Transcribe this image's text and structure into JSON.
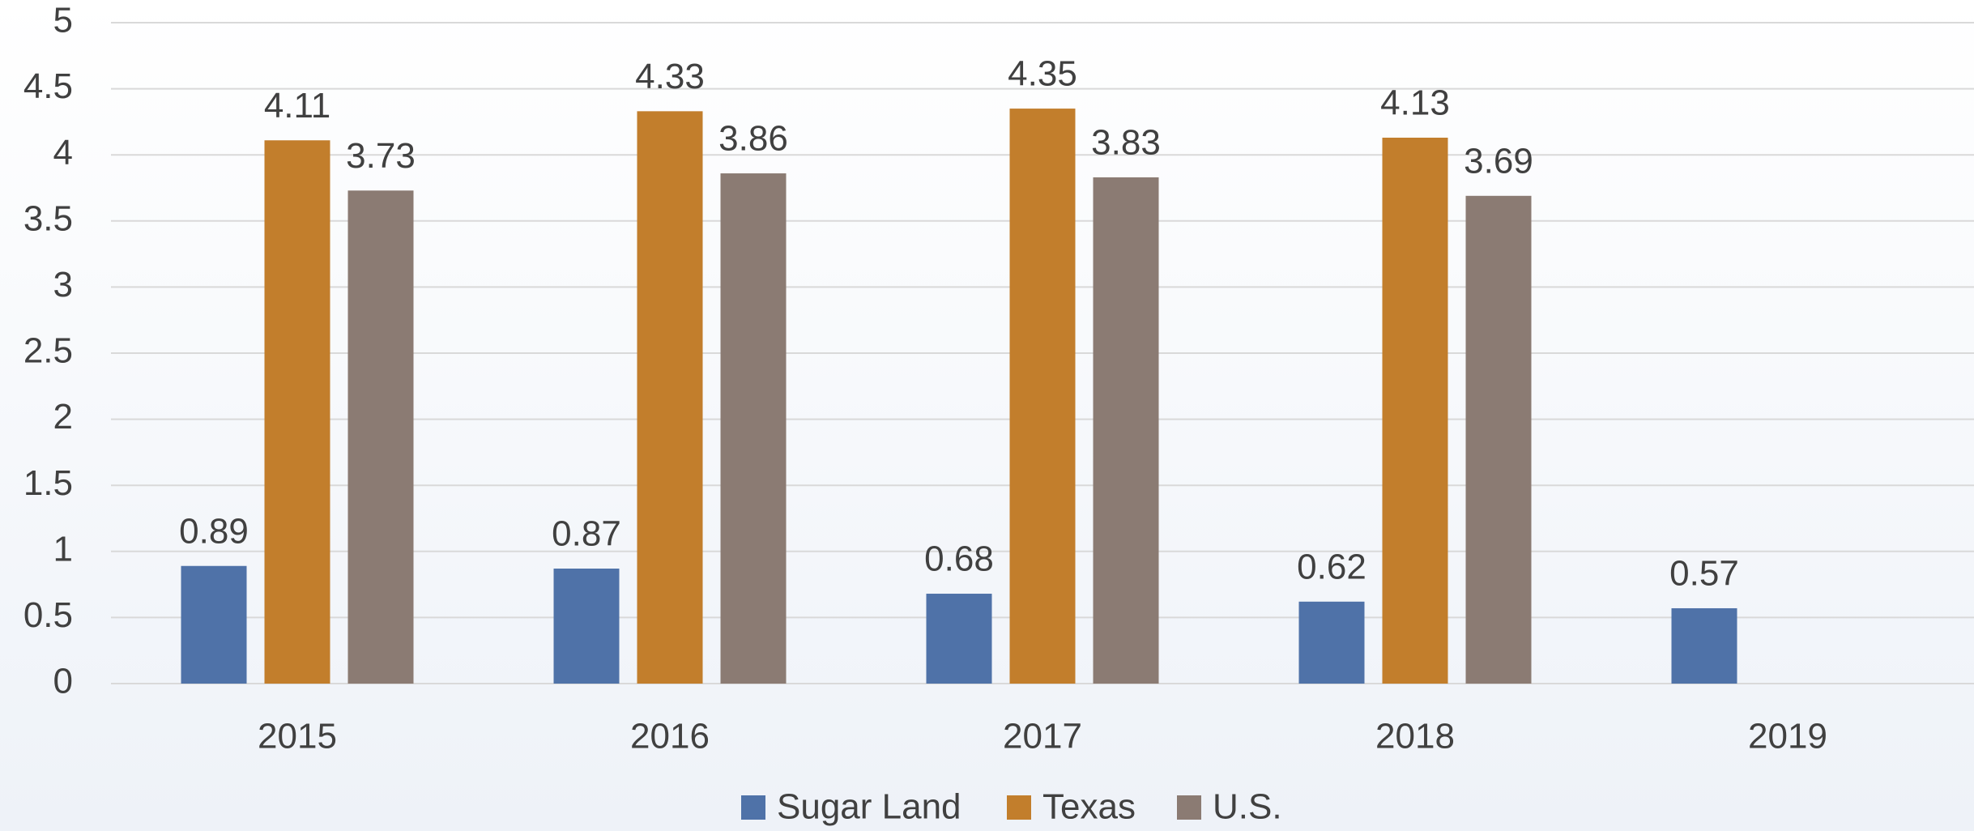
{
  "chart_data": {
    "type": "bar",
    "categories": [
      "2015",
      "2016",
      "2017",
      "2018",
      "2019"
    ],
    "series": [
      {
        "name": "Sugar Land",
        "color": "#4f72a8",
        "values": [
          0.89,
          0.87,
          0.68,
          0.62,
          0.57
        ]
      },
      {
        "name": "Texas",
        "color": "#c27e2c",
        "values": [
          4.11,
          4.33,
          4.35,
          4.13,
          null
        ]
      },
      {
        "name": "U.S.",
        "color": "#8b7b73",
        "values": [
          3.73,
          3.86,
          3.83,
          3.69,
          null
        ]
      }
    ],
    "ylim": [
      0,
      5
    ],
    "yticks": [
      0,
      0.5,
      1,
      1.5,
      2,
      2.5,
      3,
      3.5,
      4,
      4.5,
      5
    ],
    "grid": true,
    "legend": "bottom"
  }
}
